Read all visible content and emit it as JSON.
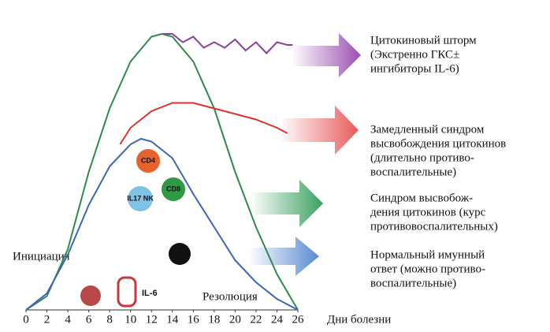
{
  "chart_data": {
    "type": "line",
    "x_label": "Дни болезни",
    "xlim": [
      0,
      26
    ],
    "xticks": [
      0,
      2,
      4,
      6,
      8,
      10,
      12,
      14,
      16,
      18,
      20,
      22,
      24,
      26
    ],
    "ylim": [
      0,
      100
    ],
    "series": [
      {
        "color": "#2f8a4c",
        "x": [
          0,
          2,
          4,
          6,
          8,
          10,
          12,
          13,
          14,
          16,
          18,
          20,
          22,
          24,
          26
        ],
        "values": [
          0,
          5,
          22,
          50,
          73,
          90,
          99,
          100,
          99,
          90,
          73,
          50,
          30,
          13,
          0
        ]
      },
      {
        "color": "#3a66b8",
        "x": [
          0,
          2,
          4,
          6,
          8,
          10,
          11,
          12,
          14,
          16,
          18,
          20,
          22,
          24,
          26
        ],
        "values": [
          0,
          6,
          20,
          38,
          52,
          60,
          62,
          61,
          55,
          42,
          30,
          18,
          10,
          4,
          0
        ]
      },
      {
        "color": "#e0322d",
        "x": [
          9,
          10,
          12,
          14,
          16,
          18,
          20,
          22,
          24,
          25
        ],
        "values": [
          60,
          66,
          72,
          75,
          75,
          73,
          71,
          69,
          66,
          64
        ]
      },
      {
        "color": "#8e3fa0",
        "x": [
          13,
          14,
          15,
          16,
          17,
          18,
          19,
          20,
          21,
          22,
          23,
          24,
          25,
          25.5
        ],
        "values": [
          100,
          100,
          97,
          99,
          95,
          97,
          95,
          98,
          94,
          97,
          93,
          97,
          96,
          96
        ]
      }
    ],
    "annotations": [
      [
        "Цитокиновый шторм",
        "(Экстренно ГКС±",
        "ингибиторы IL-6)"
      ],
      [
        "Замедленный синдром",
        "высвобождения цитокинов",
        "(длительно противо-",
        "воспалительные)"
      ],
      [
        "Синдром высвобож-",
        "дения цитокинов (курс",
        "противовоспалительных)"
      ],
      [
        "Нормальный имунный",
        "ответ (можно противо-",
        "воспалительные)"
      ]
    ],
    "phase_labels": [
      "Инициация",
      "Резолюция"
    ],
    "icon_labels": [
      "CD4",
      "CD8",
      "IL17 NK",
      "IL-6"
    ]
  }
}
